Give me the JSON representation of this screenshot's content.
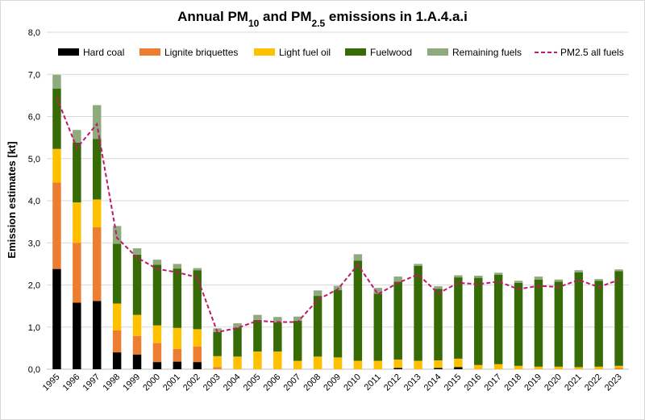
{
  "chart_data": {
    "type": "bar",
    "stacked": true,
    "title_parts": {
      "prefix": "Annual PM",
      "sub1": "10",
      "mid": " and PM",
      "sub2": "2.5",
      "suffix": " emissions in 1.A.4.a.i"
    },
    "ylabel": "Emission estimates [kt]",
    "xlabel": "",
    "ylim": [
      0,
      8
    ],
    "yticks": [
      0,
      1,
      2,
      3,
      4,
      5,
      6,
      7,
      8
    ],
    "ytick_labels": [
      "0,0",
      "1,0",
      "2,0",
      "3,0",
      "4,0",
      "5,0",
      "6,0",
      "7,0",
      "8,0"
    ],
    "grid": true,
    "legend_position": "top",
    "categories": [
      "1995",
      "1996",
      "1997",
      "1998",
      "1999",
      "2000",
      "2001",
      "2002",
      "2003",
      "2004",
      "2005",
      "2006",
      "2007",
      "2008",
      "2009",
      "2010",
      "2011",
      "2012",
      "2013",
      "2014",
      "2015",
      "2016",
      "2017",
      "2018",
      "2019",
      "2020",
      "2021",
      "2022",
      "2023"
    ],
    "series": [
      {
        "name": "Hard coal",
        "color": "#000000",
        "values": [
          2.38,
          1.58,
          1.62,
          0.4,
          0.35,
          0.17,
          0.18,
          0.17,
          0.0,
          0.0,
          0.0,
          0.0,
          0.0,
          0.0,
          0.0,
          0.0,
          0.0,
          0.03,
          0.0,
          0.03,
          0.05,
          0.0,
          0.0,
          0.0,
          0.0,
          0.0,
          0.0,
          0.0,
          0.0
        ]
      },
      {
        "name": "Lignite briquettes",
        "color": "#ed7d31",
        "values": [
          2.05,
          1.42,
          1.75,
          0.52,
          0.44,
          0.45,
          0.3,
          0.37,
          0.05,
          0.0,
          0.0,
          0.0,
          0.0,
          0.0,
          0.0,
          0.0,
          0.0,
          0.0,
          0.0,
          0.0,
          0.0,
          0.0,
          0.0,
          0.0,
          0.0,
          0.0,
          0.0,
          0.0,
          0.03
        ]
      },
      {
        "name": "Light fuel oil",
        "color": "#ffc000",
        "values": [
          0.8,
          0.96,
          0.66,
          0.64,
          0.5,
          0.42,
          0.5,
          0.41,
          0.26,
          0.3,
          0.42,
          0.42,
          0.2,
          0.3,
          0.28,
          0.2,
          0.2,
          0.2,
          0.2,
          0.18,
          0.2,
          0.1,
          0.12,
          0.08,
          0.06,
          0.06,
          0.05,
          0.06,
          0.05
        ]
      },
      {
        "name": "Fuelwood",
        "color": "#376b06",
        "values": [
          1.43,
          1.42,
          1.44,
          1.42,
          1.43,
          1.44,
          1.41,
          1.4,
          0.57,
          0.69,
          0.75,
          0.69,
          0.95,
          1.44,
          1.6,
          2.38,
          1.59,
          1.85,
          2.25,
          1.7,
          1.93,
          2.07,
          2.12,
          1.97,
          2.07,
          2.02,
          2.25,
          2.04,
          2.25
        ]
      },
      {
        "name": "Remaining fuels",
        "color": "#8faa7d",
        "values": [
          0.33,
          0.3,
          0.8,
          0.42,
          0.15,
          0.12,
          0.11,
          0.05,
          0.09,
          0.1,
          0.12,
          0.13,
          0.1,
          0.13,
          0.1,
          0.15,
          0.14,
          0.12,
          0.05,
          0.06,
          0.05,
          0.05,
          0.05,
          0.05,
          0.07,
          0.05,
          0.05,
          0.04,
          0.04
        ]
      }
    ],
    "line_series": {
      "name": "PM2.5 all fuels",
      "color": "#c0186a",
      "style": "dashed",
      "values": [
        6.45,
        5.25,
        5.82,
        3.12,
        2.65,
        2.38,
        2.3,
        2.18,
        0.88,
        0.98,
        1.15,
        1.12,
        1.12,
        1.65,
        1.9,
        2.48,
        1.78,
        2.05,
        2.25,
        1.8,
        2.05,
        2.02,
        2.08,
        1.9,
        1.98,
        1.95,
        2.12,
        1.95,
        2.12
      ]
    }
  }
}
